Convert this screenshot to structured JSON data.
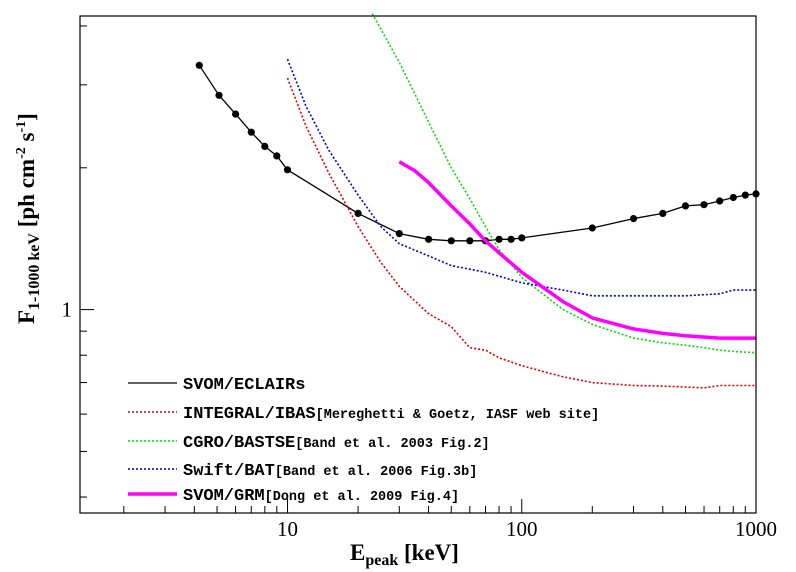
{
  "chart_data": {
    "type": "line",
    "title": "",
    "xlabel": {
      "main": "E",
      "sub": "peak",
      "unit": " [keV]"
    },
    "ylabel": {
      "main": "F",
      "sub": "1-1000 keV",
      "unit_prefix": " [ph cm",
      "unit_exp1": "-2",
      "unit_mid": " s",
      "unit_exp2": "-1",
      "unit_suffix": "]"
    },
    "xscale": "log",
    "yscale": "log",
    "xlim": [
      1.3,
      1000
    ],
    "ylim": [
      0.37,
      4.2
    ],
    "xticks": [
      {
        "value": 10,
        "label": "10"
      },
      {
        "value": 100,
        "label": "100"
      },
      {
        "value": 1000,
        "label": "1000"
      }
    ],
    "yticks": [
      {
        "value": 1,
        "label": "1"
      }
    ],
    "legend_position": "bottom-left",
    "series": [
      {
        "name": "SVOM/ECLAIRs",
        "ref": "",
        "color": "#000000",
        "style": "solid-markers",
        "x": [
          4.2,
          5.1,
          6.0,
          7.0,
          8.0,
          9.0,
          10,
          20,
          30,
          40,
          50,
          60,
          70,
          80,
          90,
          100,
          200,
          300,
          400,
          500,
          600,
          700,
          800,
          900,
          1000
        ],
        "y": [
          3.3,
          2.85,
          2.6,
          2.38,
          2.22,
          2.12,
          1.98,
          1.6,
          1.45,
          1.41,
          1.4,
          1.4,
          1.4,
          1.41,
          1.41,
          1.42,
          1.49,
          1.56,
          1.6,
          1.66,
          1.67,
          1.7,
          1.73,
          1.75,
          1.76
        ]
      },
      {
        "name": "INTEGRAL/IBAS",
        "ref": "[Mereghetti & Goetz, IASF web site]",
        "color": "#dd0000",
        "style": "dotted",
        "x": [
          10,
          12,
          15,
          20,
          25,
          30,
          40,
          50,
          60,
          70,
          80,
          100,
          150,
          200,
          300,
          400,
          500,
          600,
          700,
          800,
          1000
        ],
        "y": [
          3.1,
          2.45,
          1.95,
          1.5,
          1.26,
          1.12,
          0.98,
          0.92,
          0.83,
          0.82,
          0.79,
          0.76,
          0.72,
          0.7,
          0.69,
          0.688,
          0.685,
          0.682,
          0.69,
          0.69,
          0.69
        ]
      },
      {
        "name": "CGRO/BASTSE",
        "ref": "[Band et al. 2003 Fig.2]",
        "color": "#00dd00",
        "style": "dotted",
        "x": [
          23,
          30,
          40,
          50,
          60,
          70,
          80,
          100,
          150,
          200,
          300,
          400,
          500,
          600,
          700,
          800,
          1000
        ],
        "y": [
          4.25,
          3.35,
          2.5,
          2.0,
          1.72,
          1.5,
          1.34,
          1.17,
          1.0,
          0.93,
          0.87,
          0.85,
          0.84,
          0.83,
          0.82,
          0.815,
          0.81
        ]
      },
      {
        "name": "Swift/BAT",
        "ref": "[Band et al. 2006 Fig.3b]",
        "color": "#0000cc",
        "style": "dotted",
        "x": [
          10,
          12,
          15,
          20,
          25,
          30,
          40,
          50,
          70,
          100,
          150,
          200,
          300,
          500,
          700,
          800,
          900,
          1000
        ],
        "y": [
          3.4,
          2.7,
          2.18,
          1.75,
          1.5,
          1.38,
          1.3,
          1.24,
          1.2,
          1.14,
          1.1,
          1.07,
          1.07,
          1.07,
          1.08,
          1.1,
          1.1,
          1.1
        ]
      },
      {
        "name": "SVOM/GRM",
        "ref": "[Dong et al. 2009 Fig.4]",
        "color": "#ff00ff",
        "style": "thick",
        "x": [
          30,
          35,
          40,
          50,
          60,
          70,
          80,
          100,
          150,
          200,
          300,
          400,
          500,
          700,
          1000
        ],
        "y": [
          2.06,
          1.97,
          1.86,
          1.66,
          1.52,
          1.4,
          1.32,
          1.2,
          1.04,
          0.96,
          0.91,
          0.89,
          0.88,
          0.87,
          0.87
        ]
      }
    ]
  }
}
